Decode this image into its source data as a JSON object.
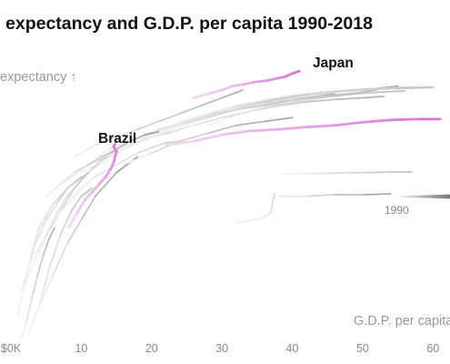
{
  "chart_data": {
    "type": "line",
    "title": "expectancy and G.D.P. per capita 1990-2018",
    "ylabel": "expectancy ↑",
    "xlabel": "G.D.P. per capita",
    "x_ticks": [
      "$0K",
      "10",
      "20",
      "30",
      "40",
      "50",
      "60"
    ],
    "xlim": [
      0,
      61
    ],
    "ylim": [
      50,
      87
    ],
    "grid": false,
    "legend": {
      "year_start_label": "1990",
      "placement": "right"
    },
    "highlight_colors": {
      "Japan": "#d66fd8",
      "Brazil": "#d66fd8",
      "Unlabeled highlight": "#d66fd8"
    },
    "background_color": "#d9d9d9",
    "highlighted_series": [
      {
        "name": "Japan",
        "label": "Japan",
        "x": [
          26,
          28,
          30,
          31.5,
          33,
          34.5,
          35.5,
          36.5,
          38,
          39,
          40,
          41
        ],
        "y": [
          81.5,
          82.0,
          82.5,
          83.0,
          83.2,
          83.5,
          83.6,
          83.7,
          84.0,
          84.2,
          84.6,
          84.9
        ]
      },
      {
        "name": "Brazil",
        "label": "Brazil",
        "x": [
          8.2,
          9.5,
          10.5,
          11.5,
          12.5,
          13.5,
          14.2,
          14.6,
          15.0,
          14.6,
          14.8
        ],
        "y": [
          65.0,
          67.0,
          68.5,
          69.5,
          70.5,
          71.5,
          72.5,
          73.3,
          74.7,
          75.3,
          75.6
        ]
      },
      {
        "name": "Unlabeled highlight",
        "x": [
          22,
          26,
          30,
          34,
          38,
          42,
          46,
          50,
          54,
          58,
          61
        ],
        "y": [
          75.5,
          76.0,
          76.8,
          77.3,
          77.5,
          77.8,
          78.0,
          78.4,
          78.7,
          78.8,
          78.8
        ]
      }
    ],
    "background_series": [
      {
        "x": [
          2,
          4,
          6,
          8,
          10,
          12,
          14
        ],
        "y": [
          58,
          62,
          66,
          69,
          71,
          73,
          74.5
        ]
      },
      {
        "x": [
          3,
          5,
          7,
          9,
          11,
          13,
          15
        ],
        "y": [
          61,
          64,
          67,
          70,
          72,
          73.5,
          75
        ]
      },
      {
        "x": [
          2.5,
          4,
          5.5,
          7,
          8.5,
          10,
          11.5
        ],
        "y": [
          51.5,
          55,
          60,
          64,
          67,
          69,
          70
        ]
      },
      {
        "x": [
          4,
          6,
          8,
          10,
          12,
          15,
          18
        ],
        "y": [
          55,
          59,
          63,
          66,
          69,
          72,
          74
        ]
      },
      {
        "x": [
          6,
          8,
          11,
          14,
          18,
          22,
          26,
          30
        ],
        "y": [
          68,
          70,
          72,
          74,
          76,
          77,
          78,
          79
        ]
      },
      {
        "x": [
          8,
          11,
          14,
          17,
          21,
          25,
          29,
          33,
          37
        ],
        "y": [
          71,
          73,
          75,
          76,
          77.5,
          78.5,
          79.5,
          80.5,
          81
        ]
      },
      {
        "x": [
          10,
          14,
          18,
          22,
          26,
          30,
          34,
          38,
          42,
          46
        ],
        "y": [
          72,
          74,
          76,
          77.5,
          78.5,
          79.5,
          80.5,
          81,
          81.5,
          82
        ]
      },
      {
        "x": [
          12,
          16,
          20,
          24,
          28,
          32,
          36,
          40,
          44,
          48,
          52
        ],
        "y": [
          73.5,
          75,
          76.5,
          78,
          79,
          80,
          80.5,
          81,
          81.5,
          82,
          82.5
        ]
      },
      {
        "x": [
          15,
          19,
          23,
          27,
          31,
          35,
          39,
          43,
          47,
          51,
          55
        ],
        "y": [
          75,
          76.5,
          78,
          79,
          80,
          80.8,
          81.5,
          82,
          82.3,
          82.6,
          83
        ]
      },
      {
        "x": [
          18,
          22,
          26,
          30,
          34,
          38,
          42,
          46,
          50,
          54,
          57
        ],
        "y": [
          76,
          77.5,
          79,
          80,
          80.8,
          81.5,
          82,
          82.3,
          82.6,
          82.8,
          82.9
        ]
      },
      {
        "x": [
          20,
          24,
          28,
          32,
          36,
          40,
          44,
          48,
          52,
          56,
          60
        ],
        "y": [
          76.5,
          78,
          79.5,
          80.5,
          81.2,
          81.8,
          82.2,
          82.5,
          82.7,
          82.8,
          82.9
        ]
      },
      {
        "x": [
          9,
          12,
          15,
          18,
          21,
          24,
          27,
          30,
          33
        ],
        "y": [
          74,
          75.5,
          76.5,
          77.5,
          78.5,
          79.5,
          80.5,
          81.5,
          82.5
        ]
      },
      {
        "x": [
          13,
          17,
          21,
          25,
          29,
          33,
          37,
          41,
          45,
          49
        ],
        "y": [
          74.5,
          76,
          77.5,
          78.5,
          79.5,
          80.2,
          80.8,
          81.4,
          81.8,
          82.1
        ]
      },
      {
        "x": [
          5,
          7,
          9,
          11,
          13,
          15,
          17,
          19,
          21
        ],
        "y": [
          69,
          70.5,
          72,
          73,
          74,
          75,
          76,
          76.8,
          77.2
        ]
      },
      {
        "x": [
          6,
          8,
          10,
          12,
          14,
          16,
          18,
          20,
          22,
          24
        ],
        "y": [
          66,
          68,
          70,
          71.5,
          72.5,
          73.5,
          74.5,
          75.2,
          75.8,
          76
        ]
      },
      {
        "x": [
          24,
          28,
          32,
          36,
          40,
          44,
          48,
          52,
          56,
          60
        ],
        "y": [
          78.5,
          79.5,
          80.2,
          80.8,
          81.5,
          82,
          82.4,
          82.6,
          82.7,
          82.8
        ]
      },
      {
        "x": [
          22,
          26,
          30,
          34,
          38,
          42,
          46,
          50,
          53
        ],
        "y": [
          76.8,
          78,
          79,
          79.8,
          80.5,
          81,
          81.3,
          81.5,
          81.7
        ]
      },
      {
        "x": [
          28,
          31,
          34,
          37,
          40,
          43,
          46,
          49,
          52,
          56
        ],
        "y": [
          78,
          79,
          79.8,
          80.5,
          81,
          81.4,
          81.7,
          82,
          82.2,
          82.4
        ]
      },
      {
        "x": [
          16,
          20,
          24,
          28,
          32,
          36,
          40
        ],
        "y": [
          73,
          74.5,
          76,
          77,
          78,
          78.5,
          79
        ]
      },
      {
        "x": [
          1,
          2,
          3,
          4,
          6,
          8,
          10
        ],
        "y": [
          54,
          58,
          62,
          65,
          68,
          70,
          71.5
        ]
      },
      {
        "x": [
          1.5,
          2.5,
          3.5,
          5,
          6.5,
          8,
          9.5,
          11
        ],
        "y": [
          57,
          60,
          63,
          66,
          68,
          70,
          71,
          72
        ]
      },
      {
        "x": [
          1.5,
          2.2,
          3.0,
          3.8,
          4.6,
          5.4,
          6.2
        ],
        "y": [
          51,
          53,
          56,
          59,
          61.5,
          63.5,
          65
        ]
      },
      {
        "x": [
          39,
          42,
          45,
          48,
          51,
          54,
          57
        ],
        "y": [
          71.8,
          71.9,
          71.9,
          72.0,
          72.0,
          72.1,
          72.1
        ]
      },
      {
        "x": [
          38,
          42,
          46,
          50,
          54
        ],
        "y": [
          69.0,
          69.0,
          69.2,
          69.2,
          69.3
        ]
      },
      {
        "x": [
          32,
          34,
          36,
          37,
          37.2,
          37.5
        ],
        "y": [
          65.6,
          65.9,
          66.3,
          67.0,
          68.2,
          69.3
        ]
      }
    ]
  }
}
